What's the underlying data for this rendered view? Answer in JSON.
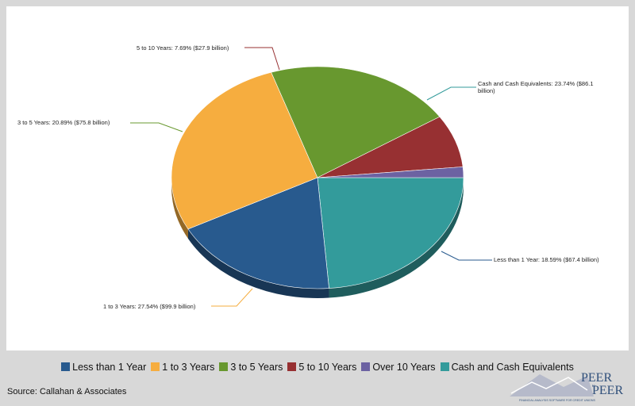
{
  "chart_data": {
    "type": "pie",
    "title": "",
    "slices": [
      {
        "name": "Cash and Cash Equivalents",
        "percent": 23.74,
        "label": "Cash and Cash Equivalents: 23.74% ($86.1 billion)",
        "color": "#339b9b"
      },
      {
        "name": "Less than 1 Year",
        "percent": 18.59,
        "label": "Less than 1 Year: 18.59% ($67.4 billion)",
        "color": "#285a8e"
      },
      {
        "name": "1 to 3 Years",
        "percent": 27.54,
        "label": "1 to 3 Years: 27.54% ($99.9 billion)",
        "color": "#f6ad3f"
      },
      {
        "name": "3 to 5 Years",
        "percent": 20.89,
        "label": "3 to 5 Years: 20.89% ($75.8 billion)",
        "color": "#68982f"
      },
      {
        "name": "5 to 10 Years",
        "percent": 7.69,
        "label": "5 to 10 Years: 7.69% ($27.9 billion)",
        "color": "#973032"
      },
      {
        "name": "Over 10 Years",
        "percent": 1.55,
        "label": "",
        "color": "#6c62a2"
      }
    ],
    "legend": {
      "placement": "bottom",
      "entries": [
        {
          "name": "Less than 1 Year",
          "color": "#285a8e"
        },
        {
          "name": "1 to 3 Years",
          "color": "#f6ad3f"
        },
        {
          "name": "3 to 5 Years",
          "color": "#68982f"
        },
        {
          "name": "5 to 10 Years",
          "color": "#973032"
        },
        {
          "name": "Over 10 Years",
          "color": "#6c62a2"
        },
        {
          "name": "Cash and Cash Equivalents",
          "color": "#339b9b"
        }
      ]
    }
  },
  "source": "Source: Callahan & Associates",
  "logo": {
    "line1": "PEER",
    "mid": "to",
    "line2": "PEER",
    "tagline": "FINANCIAL ANALYSIS SOFTWARE FOR CREDIT UNIONS"
  }
}
